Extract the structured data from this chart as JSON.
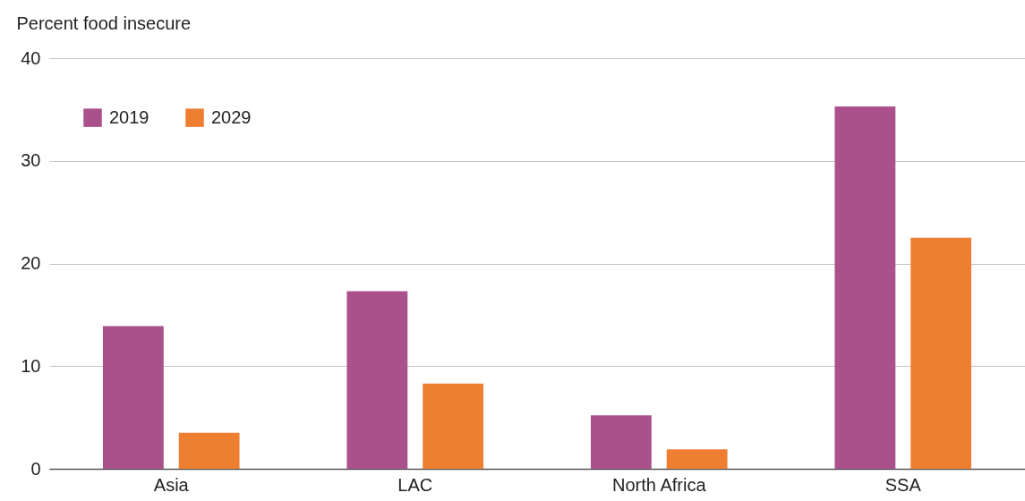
{
  "chart_data": {
    "type": "bar",
    "ylabel": "Percent food insecure",
    "categories": [
      "Asia",
      "LAC",
      "North Africa",
      "SSA"
    ],
    "series": [
      {
        "name": "2019",
        "color": "#aa508b",
        "values": [
          13.9,
          17.3,
          5.2,
          35.3
        ]
      },
      {
        "name": "2029",
        "color": "#ee7f32",
        "values": [
          3.5,
          8.3,
          1.9,
          22.5
        ]
      }
    ],
    "ylim": [
      0,
      40
    ],
    "yticks": [
      0,
      10,
      20,
      30,
      40
    ],
    "grid": "y",
    "legend": "top left"
  }
}
